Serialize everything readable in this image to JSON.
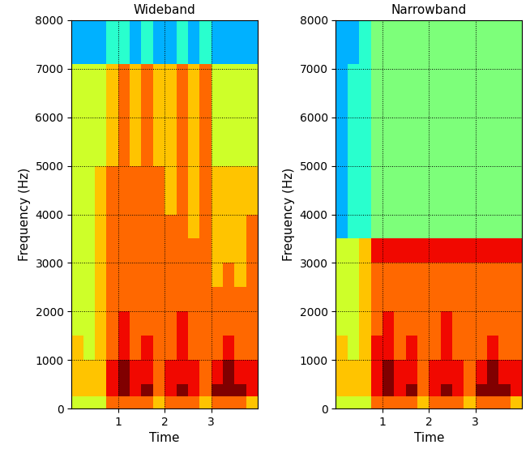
{
  "chart_data": [
    {
      "type": "heatmap",
      "title": "Wideband",
      "x_label": "Time",
      "y_label": "Frequency (Hz)",
      "xlim": [
        0,
        4
      ],
      "ylim": [
        0,
        8000
      ],
      "xticks": [
        1,
        2,
        3
      ],
      "yticks": [
        0,
        1000,
        2000,
        3000,
        4000,
        5000,
        6000,
        7000,
        8000
      ],
      "grid": true,
      "time_edges": [
        0,
        0.25,
        0.5,
        0.75,
        1,
        1.25,
        1.5,
        1.75,
        2,
        2.25,
        2.5,
        2.75,
        3,
        3.25,
        3.5,
        3.75,
        4
      ],
      "frequency_edges": [
        0,
        250,
        500,
        1000,
        1500,
        2000,
        2500,
        3000,
        3500,
        4000,
        5000,
        6000,
        7100,
        8000
      ],
      "value_range": [
        0,
        10
      ],
      "cells": [
        [
          6,
          6,
          6,
          8,
          8,
          8,
          8,
          7,
          8,
          8,
          8,
          7,
          8,
          8,
          8,
          7
        ],
        [
          7,
          7,
          7,
          9,
          10,
          9,
          10,
          8,
          9,
          10,
          9,
          8,
          10,
          10,
          10,
          9
        ],
        [
          7,
          7,
          7,
          9,
          10,
          9,
          9,
          8,
          9,
          9,
          9,
          8,
          9,
          10,
          9,
          9
        ],
        [
          7,
          6,
          7,
          8,
          9,
          8,
          9,
          8,
          8,
          9,
          8,
          8,
          8,
          9,
          8,
          8
        ],
        [
          6,
          6,
          7,
          8,
          9,
          8,
          8,
          8,
          8,
          9,
          8,
          8,
          8,
          8,
          8,
          8
        ],
        [
          6,
          6,
          7,
          8,
          8,
          8,
          8,
          8,
          8,
          8,
          8,
          8,
          8,
          8,
          8,
          8
        ],
        [
          6,
          6,
          7,
          8,
          8,
          8,
          8,
          8,
          8,
          8,
          8,
          8,
          7,
          8,
          7,
          8
        ],
        [
          6,
          6,
          7,
          8,
          8,
          8,
          8,
          8,
          8,
          8,
          8,
          8,
          7,
          7,
          7,
          8
        ],
        [
          6,
          6,
          7,
          8,
          8,
          8,
          8,
          8,
          8,
          8,
          7,
          8,
          7,
          7,
          7,
          8
        ],
        [
          6,
          6,
          7,
          8,
          8,
          8,
          8,
          8,
          7,
          8,
          7,
          8,
          7,
          7,
          7,
          7
        ],
        [
          6,
          6,
          6,
          7,
          8,
          7,
          8,
          7,
          7,
          8,
          7,
          8,
          6,
          6,
          6,
          6
        ],
        [
          6,
          6,
          6,
          7,
          8,
          7,
          8,
          7,
          7,
          8,
          7,
          8,
          6,
          6,
          6,
          6
        ],
        [
          3,
          3,
          3,
          4,
          4,
          3,
          4,
          3,
          3,
          4,
          3,
          4,
          3,
          3,
          3,
          3
        ]
      ]
    },
    {
      "type": "heatmap",
      "title": "Narrowband",
      "x_label": "Time",
      "y_label": "Frequency (Hz)",
      "xlim": [
        0,
        4
      ],
      "ylim": [
        0,
        8000
      ],
      "xticks": [
        1,
        2,
        3
      ],
      "yticks": [
        0,
        1000,
        2000,
        3000,
        4000,
        5000,
        6000,
        7000,
        8000
      ],
      "grid": true,
      "time_edges": [
        0,
        0.25,
        0.5,
        0.75,
        1,
        1.25,
        1.5,
        1.75,
        2,
        2.25,
        2.5,
        2.75,
        3,
        3.25,
        3.5,
        3.75,
        4
      ],
      "frequency_edges": [
        0,
        250,
        500,
        1000,
        1500,
        2000,
        2500,
        3000,
        3500,
        4000,
        5000,
        6000,
        7100,
        8000
      ],
      "value_range": [
        0,
        10
      ],
      "cells": [
        [
          6,
          6,
          6,
          8,
          8,
          8,
          8,
          7,
          8,
          8,
          8,
          7,
          8,
          8,
          8,
          7
        ],
        [
          7,
          7,
          7,
          9,
          10,
          9,
          10,
          8,
          9,
          10,
          9,
          8,
          10,
          10,
          10,
          9
        ],
        [
          7,
          7,
          7,
          9,
          10,
          9,
          9,
          8,
          9,
          9,
          9,
          8,
          9,
          10,
          9,
          9
        ],
        [
          7,
          6,
          7,
          9,
          9,
          8,
          9,
          8,
          8,
          9,
          8,
          8,
          8,
          9,
          8,
          8
        ],
        [
          6,
          6,
          7,
          8,
          9,
          8,
          8,
          8,
          8,
          9,
          8,
          8,
          8,
          8,
          8,
          8
        ],
        [
          6,
          6,
          7,
          8,
          8,
          8,
          8,
          8,
          8,
          8,
          8,
          8,
          8,
          8,
          8,
          8
        ],
        [
          6,
          6,
          7,
          8,
          8,
          8,
          8,
          8,
          8,
          8,
          8,
          8,
          8,
          8,
          8,
          8
        ],
        [
          6,
          6,
          7,
          9,
          9,
          9,
          9,
          9,
          9,
          9,
          9,
          9,
          9,
          9,
          9,
          9
        ],
        [
          3,
          4,
          4,
          5,
          5,
          5,
          5,
          5,
          5,
          5,
          5,
          5,
          5,
          5,
          5,
          5
        ],
        [
          3,
          4,
          4,
          5,
          5,
          5,
          5,
          5,
          5,
          5,
          5,
          5,
          5,
          5,
          5,
          5
        ],
        [
          3,
          4,
          4,
          5,
          5,
          5,
          5,
          5,
          5,
          5,
          5,
          5,
          5,
          5,
          5,
          5
        ],
        [
          3,
          4,
          4,
          5,
          5,
          5,
          5,
          5,
          5,
          5,
          5,
          5,
          5,
          5,
          5,
          5
        ],
        [
          3,
          3,
          4,
          5,
          5,
          5,
          5,
          5,
          5,
          5,
          5,
          5,
          5,
          5,
          5,
          5
        ]
      ]
    }
  ]
}
